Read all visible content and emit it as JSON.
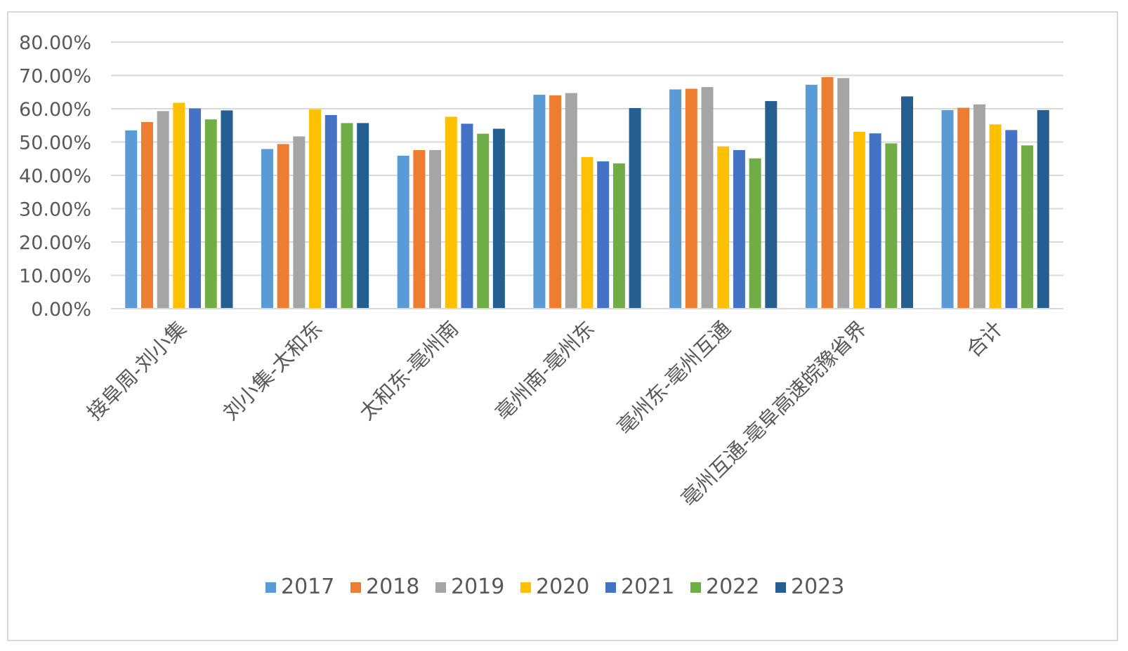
{
  "chart_data": {
    "type": "bar",
    "title": "",
    "xlabel": "",
    "ylabel": "",
    "ylim": [
      0,
      80
    ],
    "y_ticks": [
      "0.00%",
      "10.00%",
      "20.00%",
      "30.00%",
      "40.00%",
      "50.00%",
      "60.00%",
      "70.00%",
      "80.00%"
    ],
    "grid": true,
    "legend_position": "bottom",
    "categories": [
      "接阜周-刘小集",
      "刘小集-太和东",
      "太和东-亳州南",
      "亳州南-亳州东",
      "亳州东-亳州互通",
      "亳州互通-亳阜高速皖豫省界",
      "合计"
    ],
    "series": [
      {
        "name": "2017",
        "color": "#5b9bd5",
        "values": [
          53.5,
          47.9,
          45.9,
          64.2,
          65.8,
          67.2,
          59.6
        ]
      },
      {
        "name": "2018",
        "color": "#ed7d31",
        "values": [
          56.0,
          49.4,
          47.6,
          64.0,
          66.0,
          69.5,
          60.3
        ]
      },
      {
        "name": "2019",
        "color": "#a5a5a5",
        "values": [
          59.3,
          51.7,
          47.6,
          64.7,
          66.5,
          69.2,
          61.3
        ]
      },
      {
        "name": "2020",
        "color": "#ffc000",
        "values": [
          61.8,
          59.8,
          57.6,
          45.5,
          48.7,
          53.1,
          55.3
        ]
      },
      {
        "name": "2021",
        "color": "#4472c4",
        "values": [
          60.1,
          58.1,
          55.5,
          44.2,
          47.6,
          52.6,
          53.6
        ]
      },
      {
        "name": "2022",
        "color": "#70ad47",
        "values": [
          56.8,
          55.7,
          52.5,
          43.6,
          45.1,
          49.6,
          49.0
        ]
      },
      {
        "name": "2023",
        "color": "#255e91",
        "values": [
          59.5,
          55.7,
          54.0,
          60.2,
          62.3,
          63.7,
          59.6
        ]
      }
    ]
  },
  "colors": {
    "gridline": "#d9d9d9",
    "text": "#595959",
    "frame": "#d9d9d9"
  }
}
